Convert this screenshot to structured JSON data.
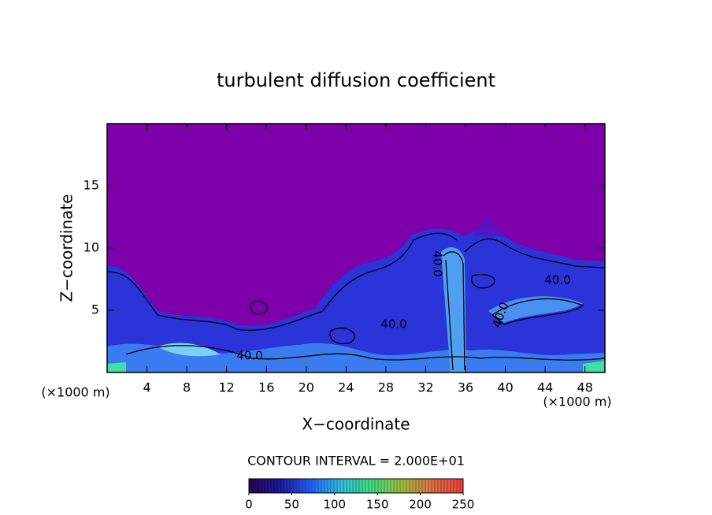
{
  "chart_data": {
    "type": "contour",
    "title": "turbulent diffusion coefficient",
    "xlabel": "X−coordinate",
    "ylabel": "Z−coordinate",
    "x_unit_label": "(×1000 m)",
    "xlim": [
      0,
      50
    ],
    "ylim": [
      0,
      20
    ],
    "xticks": [
      4,
      8,
      12,
      16,
      20,
      24,
      28,
      32,
      36,
      40,
      44,
      48
    ],
    "yticks": [
      5,
      10,
      15
    ],
    "contour_interval_label": "CONTOUR INTERVAL = 2.000E+01",
    "contour_labels": [
      {
        "value": 40,
        "label": "40.0"
      },
      {
        "value": 40,
        "label": "40.0"
      },
      {
        "value": 40,
        "label": "40.0"
      },
      {
        "value": 40,
        "label": "40.0"
      },
      {
        "value": 40,
        "label": "40.0"
      }
    ],
    "colorbar": {
      "lim": [
        0,
        250
      ],
      "ticks": [
        0,
        50,
        100,
        150,
        200,
        250
      ],
      "colors": [
        "#2a0050",
        "#1a1aa0",
        "#2060ff",
        "#30c0e0",
        "#40e080",
        "#a0c040",
        "#e07040",
        "#f04040"
      ]
    }
  }
}
